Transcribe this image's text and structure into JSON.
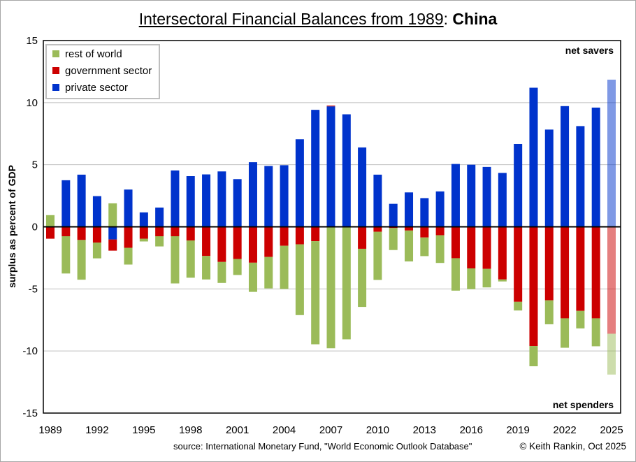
{
  "chart_data": {
    "type": "bar",
    "stacked": true,
    "title": {
      "main": "Intersectoral Financial Balances from 1989",
      "separator": ": ",
      "country": "China"
    },
    "xlabel": "",
    "ylabel": "surplus as percent of GDP",
    "ylim": [
      -15,
      15
    ],
    "yticks": [
      15,
      10,
      5,
      0,
      -5,
      -10,
      -15
    ],
    "xtick_labels": [
      "1989",
      "1992",
      "1995",
      "1998",
      "2001",
      "2004",
      "2007",
      "2010",
      "2013",
      "2016",
      "2019",
      "2022",
      "2025"
    ],
    "grid": true,
    "legend_position": "top-left",
    "annotations": {
      "top": "net savers",
      "bottom": "net spenders"
    },
    "projected_years": [
      "2025"
    ],
    "categories": [
      "1989",
      "1990",
      "1991",
      "1992",
      "1993",
      "1994",
      "1995",
      "1996",
      "1997",
      "1998",
      "1999",
      "2000",
      "2001",
      "2002",
      "2003",
      "2004",
      "2005",
      "2006",
      "2007",
      "2008",
      "2009",
      "2010",
      "2011",
      "2012",
      "2013",
      "2014",
      "2015",
      "2016",
      "2017",
      "2018",
      "2019",
      "2020",
      "2021",
      "2022",
      "2023",
      "2024",
      "2025"
    ],
    "series": [
      {
        "name": "private sector",
        "color": "#0033CC",
        "values": [
          0,
          3.75,
          4.2,
          2.47,
          -1.02,
          3.0,
          1.16,
          1.55,
          4.54,
          4.08,
          4.22,
          4.46,
          3.84,
          5.2,
          4.9,
          4.96,
          7.05,
          9.42,
          9.7,
          9.06,
          6.39,
          4.2,
          1.85,
          2.77,
          2.31,
          2.85,
          5.06,
          5.0,
          4.82,
          4.34,
          6.67,
          11.2,
          7.83,
          9.72,
          8.11,
          9.6,
          11.85
        ]
      },
      {
        "name": "government sector",
        "color": "#CC0000",
        "values": [
          -0.96,
          -0.76,
          -1.06,
          -1.27,
          -0.9,
          -1.69,
          -0.96,
          -0.76,
          -0.76,
          -1.1,
          -2.35,
          -2.83,
          -2.59,
          -2.89,
          -2.43,
          -1.53,
          -1.41,
          -1.16,
          0.06,
          0,
          -1.77,
          -0.4,
          -0.1,
          -0.3,
          -0.86,
          -0.68,
          -2.53,
          -3.35,
          -3.39,
          -4.24,
          -6.04,
          -9.6,
          -5.92,
          -7.37,
          -6.77,
          -7.37,
          -8.61
        ]
      },
      {
        "name": "rest of world",
        "color": "#9BBB59",
        "values": [
          0.94,
          -3.0,
          -3.2,
          -1.27,
          1.89,
          -1.35,
          -0.22,
          -0.82,
          -3.8,
          -3.0,
          -1.89,
          -1.69,
          -1.29,
          -2.35,
          -2.53,
          -3.47,
          -5.7,
          -8.3,
          -9.78,
          -9.06,
          -4.68,
          -3.88,
          -1.77,
          -2.49,
          -1.5,
          -2.23,
          -2.61,
          -1.67,
          -1.49,
          -0.16,
          -0.7,
          -1.63,
          -1.93,
          -2.37,
          -1.41,
          -2.25,
          -3.29
        ]
      }
    ],
    "legend_order": [
      "rest of world",
      "government sector",
      "private sector"
    ]
  },
  "footer": {
    "source": "source:  International Monetary Fund, \"World Economic Outlook Database\"",
    "credit": "© Keith Rankin, Oct 2025"
  }
}
